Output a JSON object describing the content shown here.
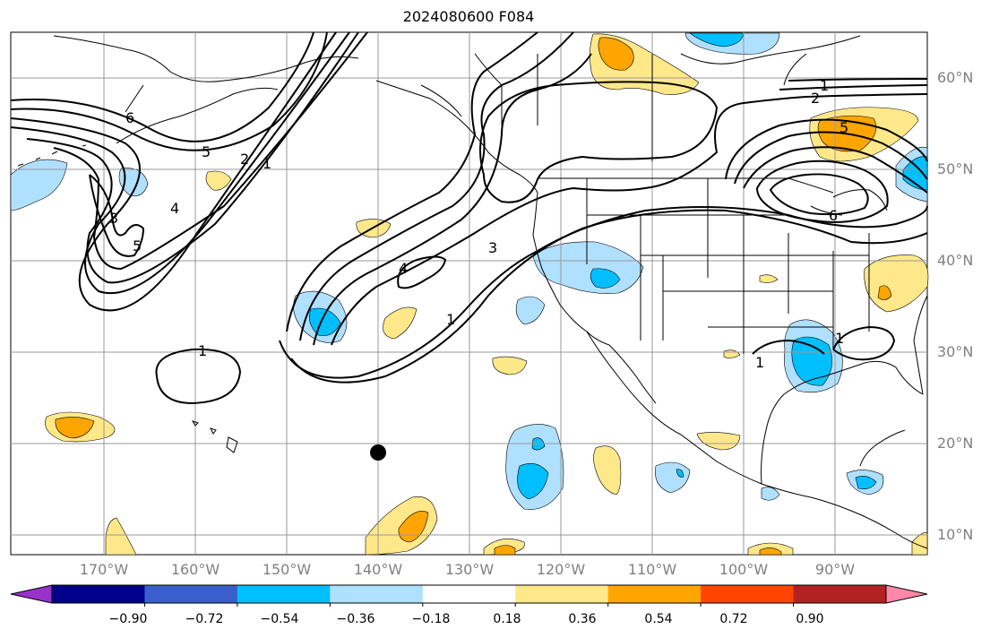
{
  "title": "2024080600 F084",
  "lat_labels": [
    "60°N",
    "50°N",
    "40°N",
    "30°N",
    "20°N",
    "10°N"
  ],
  "lon_labels": [
    "170°W",
    "160°W",
    "150°W",
    "140°W",
    "130°W",
    "120°W",
    "110°W",
    "100°W",
    "90°W"
  ],
  "colorbar": {
    "ticks": [
      "−0.90",
      "−0.72",
      "−0.54",
      "−0.36",
      "−0.18",
      "0.18",
      "0.36",
      "0.54",
      "0.72",
      "0.90"
    ],
    "colors": [
      "#9932cc",
      "#00008b",
      "#3a5fcd",
      "#00bfff",
      "#b0e0ff",
      "#ffffff",
      "#ffe88a",
      "#ffa500",
      "#ff4500",
      "#b22222",
      "#ff88aa"
    ]
  },
  "contour_labels": {
    "west_6": "6",
    "west_5a": "5",
    "west_2": "2",
    "west_1": "1",
    "west_3": "3",
    "west_4": "4",
    "west_5b": "5",
    "mid_4": "4",
    "mid_3": "3",
    "mid_1": "1",
    "sub_1": "1",
    "east_1": "1",
    "east_2": "2",
    "east_5": "5",
    "east_6": "6",
    "gulf_1a": "1",
    "gulf_1b": "1"
  },
  "colors": {
    "blue_light": "#b0e0ff",
    "blue": "#00bfff",
    "yellow": "#ffe88a",
    "orange": "#ffa500"
  }
}
